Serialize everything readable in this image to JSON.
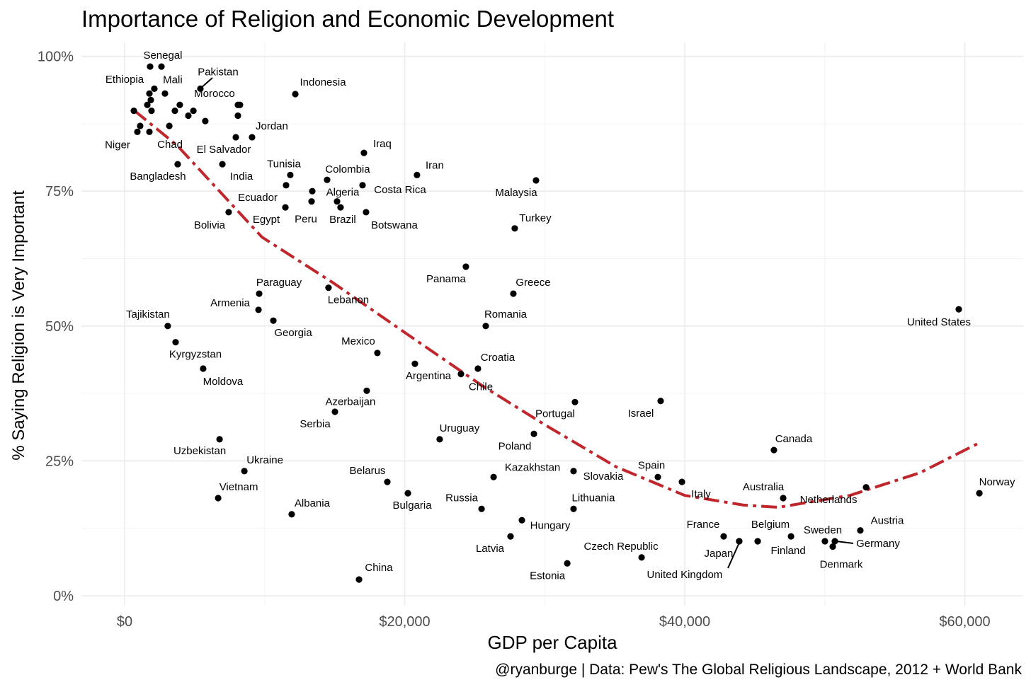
{
  "chart_data": {
    "type": "scatter",
    "title": "Importance of Religion and Economic Development",
    "xlabel": "GDP per Capita",
    "ylabel": "% Saying Religion is Very Important",
    "caption": "@ryanburge | Data: Pew's The Global Religious Landscape, 2012 + World Bank",
    "xlim": [
      -3000,
      64500
    ],
    "ylim": [
      -2,
      105
    ],
    "x_ticks": [
      0,
      20000,
      40000,
      60000
    ],
    "x_tick_labels": [
      "$0",
      "$20,000",
      "$40,000",
      "$60,000"
    ],
    "y_ticks": [
      0,
      25,
      50,
      75,
      100
    ],
    "y_tick_labels": [
      "0%",
      "25%",
      "50%",
      "75%",
      "100%"
    ],
    "grid": true,
    "trend_color": "#c0272d",
    "trend_line": [
      [
        660,
        90
      ],
      [
        3740,
        83.5
      ],
      [
        9800,
        66.5
      ],
      [
        14900,
        58
      ],
      [
        20000,
        48.8
      ],
      [
        25500,
        39
      ],
      [
        30000,
        31.7
      ],
      [
        35100,
        23.9
      ],
      [
        40000,
        18.6
      ],
      [
        44200,
        16.8
      ],
      [
        46700,
        16.4
      ],
      [
        51800,
        18.6
      ],
      [
        56800,
        22.8
      ],
      [
        61000,
        28.3
      ]
    ],
    "points": [
      {
        "label": "Senegal",
        "x": 1820,
        "y": 98.1
      },
      {
        "label": "",
        "x": 2630,
        "y": 98.1
      },
      {
        "label": "Mali",
        "x": 2120,
        "y": 94
      },
      {
        "label": "Ethiopia",
        "x": 1770,
        "y": 93.1
      },
      {
        "label": "",
        "x": 2880,
        "y": 93.1
      },
      {
        "label": "",
        "x": 1870,
        "y": 91.9
      },
      {
        "label": "",
        "x": 1620,
        "y": 91
      },
      {
        "label": "",
        "x": 1920,
        "y": 89.9
      },
      {
        "label": "",
        "x": 660,
        "y": 89.9
      },
      {
        "label": "",
        "x": 3940,
        "y": 91
      },
      {
        "label": "",
        "x": 3590,
        "y": 89.9
      },
      {
        "label": "",
        "x": 4910,
        "y": 89.9
      },
      {
        "label": "",
        "x": 4550,
        "y": 89
      },
      {
        "label": "",
        "x": 5760,
        "y": 88
      },
      {
        "label": "Pakistan",
        "x": 5410,
        "y": 94
      },
      {
        "label": "",
        "x": 8090,
        "y": 91
      },
      {
        "label": "Morocco",
        "x": 8240,
        "y": 91
      },
      {
        "label": "",
        "x": 8090,
        "y": 89
      },
      {
        "label": "Chad",
        "x": 3190,
        "y": 87.1
      },
      {
        "label": "",
        "x": 1110,
        "y": 87.1
      },
      {
        "label": "Niger",
        "x": 910,
        "y": 86
      },
      {
        "label": "",
        "x": 1770,
        "y": 86
      },
      {
        "label": "El Salvador",
        "x": 7940,
        "y": 85
      },
      {
        "label": "Jordan",
        "x": 9100,
        "y": 85
      },
      {
        "label": "Bangladesh",
        "x": 3790,
        "y": 80
      },
      {
        "label": "India",
        "x": 6980,
        "y": 80
      },
      {
        "label": "Indonesia",
        "x": 12190,
        "y": 93
      },
      {
        "label": "Tunisia",
        "x": 11830,
        "y": 78
      },
      {
        "label": "Ecuador",
        "x": 11530,
        "y": 76.1
      },
      {
        "label": "",
        "x": 13400,
        "y": 75
      },
      {
        "label": "Peru",
        "x": 13350,
        "y": 73.1
      },
      {
        "label": "Egypt",
        "x": 11480,
        "y": 72
      },
      {
        "label": "Colombia",
        "x": 14460,
        "y": 77.1
      },
      {
        "label": "Algeria",
        "x": 15170,
        "y": 73.1
      },
      {
        "label": "Brazil",
        "x": 15420,
        "y": 72
      },
      {
        "label": "Costa Rica",
        "x": 16990,
        "y": 76.1
      },
      {
        "label": "Botswana",
        "x": 17240,
        "y": 71.1
      },
      {
        "label": "Iraq",
        "x": 17090,
        "y": 82.1
      },
      {
        "label": "Iran",
        "x": 20880,
        "y": 78
      },
      {
        "label": "Bolivia",
        "x": 7430,
        "y": 71.1
      },
      {
        "label": "Malaysia",
        "x": 29380,
        "y": 77
      },
      {
        "label": "Turkey",
        "x": 27860,
        "y": 68.1
      },
      {
        "label": "Panama",
        "x": 24370,
        "y": 61
      },
      {
        "label": "Greece",
        "x": 27760,
        "y": 56
      },
      {
        "label": "Romania",
        "x": 25790,
        "y": 50
      },
      {
        "label": "Paraguay",
        "x": 9610,
        "y": 56
      },
      {
        "label": "Armenia",
        "x": 9560,
        "y": 53
      },
      {
        "label": "Georgia",
        "x": 10620,
        "y": 51
      },
      {
        "label": "Lebanon",
        "x": 14560,
        "y": 57.1
      },
      {
        "label": "Tajikistan",
        "x": 3080,
        "y": 50
      },
      {
        "label": "Kyrgyzstan",
        "x": 3640,
        "y": 47
      },
      {
        "label": "Moldova",
        "x": 5610,
        "y": 42.1
      },
      {
        "label": "Mexico",
        "x": 18050,
        "y": 45
      },
      {
        "label": "Argentina",
        "x": 20730,
        "y": 43
      },
      {
        "label": "Chile",
        "x": 24020,
        "y": 41.1
      },
      {
        "label": "Croatia",
        "x": 25230,
        "y": 42.1
      },
      {
        "label": "Azerbaijan",
        "x": 17290,
        "y": 38
      },
      {
        "label": "Serbia",
        "x": 15020,
        "y": 34.1
      },
      {
        "label": "Uzbekistan",
        "x": 6780,
        "y": 29
      },
      {
        "label": "Ukraine",
        "x": 8550,
        "y": 23.1
      },
      {
        "label": "Vietnam",
        "x": 6680,
        "y": 18.1
      },
      {
        "label": "Albania",
        "x": 11930,
        "y": 15.1
      },
      {
        "label": "China",
        "x": 16740,
        "y": 3
      },
      {
        "label": "Belarus",
        "x": 18760,
        "y": 21.1
      },
      {
        "label": "Bulgaria",
        "x": 20230,
        "y": 19
      },
      {
        "label": "Uruguay",
        "x": 22500,
        "y": 29
      },
      {
        "label": "Russia",
        "x": 25490,
        "y": 16.1
      },
      {
        "label": "Kazakhstan",
        "x": 26350,
        "y": 22
      },
      {
        "label": "Latvia",
        "x": 27560,
        "y": 11
      },
      {
        "label": "Hungary",
        "x": 28370,
        "y": 14
      },
      {
        "label": "Poland",
        "x": 29230,
        "y": 30
      },
      {
        "label": "Portugal",
        "x": 32160,
        "y": 35.9
      },
      {
        "label": "Slovakia",
        "x": 32060,
        "y": 23.1
      },
      {
        "label": "Lithuania",
        "x": 32060,
        "y": 16.1
      },
      {
        "label": "Estonia",
        "x": 31610,
        "y": 6
      },
      {
        "label": "Czech Republic",
        "x": 36920,
        "y": 7.1
      },
      {
        "label": "Israel",
        "x": 38280,
        "y": 36.1
      },
      {
        "label": "Spain",
        "x": 38080,
        "y": 22
      },
      {
        "label": "Italy",
        "x": 39800,
        "y": 21.1
      },
      {
        "label": "France",
        "x": 42780,
        "y": 11
      },
      {
        "label": "Japan",
        "x": 43890,
        "y": 10.1
      },
      {
        "label": "United Kingdom",
        "x": 43890,
        "y": 10.1
      },
      {
        "label": "Belgium",
        "x": 45210,
        "y": 10.1
      },
      {
        "label": "Finland",
        "x": 47590,
        "y": 11
      },
      {
        "label": "Canada",
        "x": 46370,
        "y": 27
      },
      {
        "label": "Australia",
        "x": 47030,
        "y": 18.1
      },
      {
        "label": "Netherlands",
        "x": 52950,
        "y": 20.1
      },
      {
        "label": "Austria",
        "x": 52540,
        "y": 12.1
      },
      {
        "label": "Sweden",
        "x": 50010,
        "y": 10.1
      },
      {
        "label": "Germany",
        "x": 50720,
        "y": 10.1
      },
      {
        "label": "Denmark",
        "x": 50570,
        "y": 9.1
      },
      {
        "label": "United States",
        "x": 59570,
        "y": 53.1
      },
      {
        "label": "Norway",
        "x": 61040,
        "y": 19
      }
    ]
  }
}
